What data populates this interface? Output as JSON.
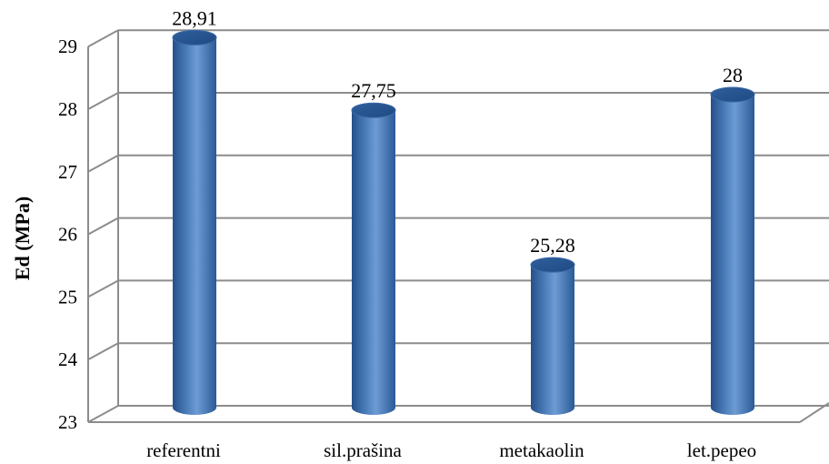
{
  "chart_data": {
    "type": "bar",
    "title": "",
    "xlabel": "",
    "ylabel": "Ed (MPa)",
    "categories": [
      "referentni",
      "sil.prašina",
      "metakaolin",
      "let.pepeo"
    ],
    "values": [
      28.91,
      27.75,
      25.28,
      28
    ],
    "value_labels": [
      "28,91",
      "27,75",
      "25,28",
      "28"
    ],
    "ylim": [
      23,
      29
    ],
    "yticks": [
      23,
      24,
      25,
      26,
      27,
      28,
      29
    ],
    "grid": true,
    "style": "3d-cylinder",
    "bar_color": "#4f81bd"
  }
}
